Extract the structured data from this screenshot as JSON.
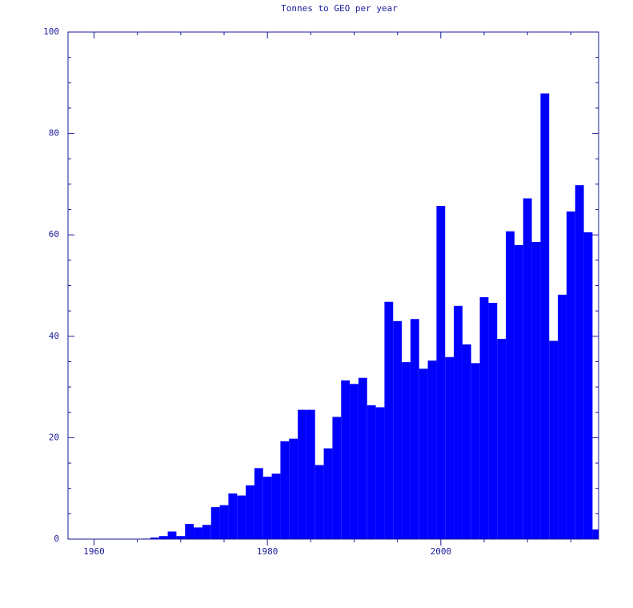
{
  "chart_data": {
    "type": "bar",
    "title": "Tonnes to GEO per year",
    "color": "#0000ff",
    "x": [
      1960,
      1961,
      1962,
      1963,
      1964,
      1965,
      1966,
      1967,
      1968,
      1969,
      1970,
      1971,
      1972,
      1973,
      1974,
      1975,
      1976,
      1977,
      1978,
      1979,
      1980,
      1981,
      1982,
      1983,
      1984,
      1985,
      1986,
      1987,
      1988,
      1989,
      1990,
      1991,
      1992,
      1993,
      1994,
      1995,
      1996,
      1997,
      1998,
      1999,
      2000,
      2001,
      2002,
      2003,
      2004,
      2005,
      2006,
      2007,
      2008,
      2009,
      2010,
      2011,
      2012,
      2013,
      2014,
      2015,
      2016,
      2017,
      2018
    ],
    "values": [
      0,
      0,
      0,
      0,
      0,
      0,
      0.1,
      0.3,
      0.6,
      1.5,
      0.6,
      3.0,
      2.3,
      2.8,
      6.3,
      6.7,
      9.0,
      8.6,
      10.6,
      14.0,
      12.3,
      12.9,
      19.3,
      19.8,
      25.5,
      25.5,
      14.6,
      17.9,
      24.1,
      31.3,
      30.6,
      31.8,
      26.4,
      26.0,
      46.8,
      43.0,
      34.9,
      43.4,
      33.6,
      35.2,
      65.7,
      35.9,
      46.0,
      38.4,
      34.7,
      47.7,
      46.6,
      39.5,
      60.7,
      58.0,
      67.2,
      58.6,
      87.9,
      39.1,
      48.2,
      64.6,
      69.8,
      60.5,
      1.9
    ],
    "xlim": [
      1957,
      2018.2
    ],
    "ylim": [
      0,
      100
    ],
    "xticks": [
      1960,
      1980,
      2000
    ],
    "yticks": [
      0,
      20,
      40,
      60,
      80,
      100
    ],
    "xminor": [
      1965,
      1970,
      1975,
      1985,
      1990,
      1995,
      2005,
      2010,
      2015
    ],
    "yminor": [
      5,
      10,
      15,
      25,
      30,
      35,
      45,
      50,
      55,
      65,
      70,
      75,
      85,
      90,
      95
    ]
  }
}
